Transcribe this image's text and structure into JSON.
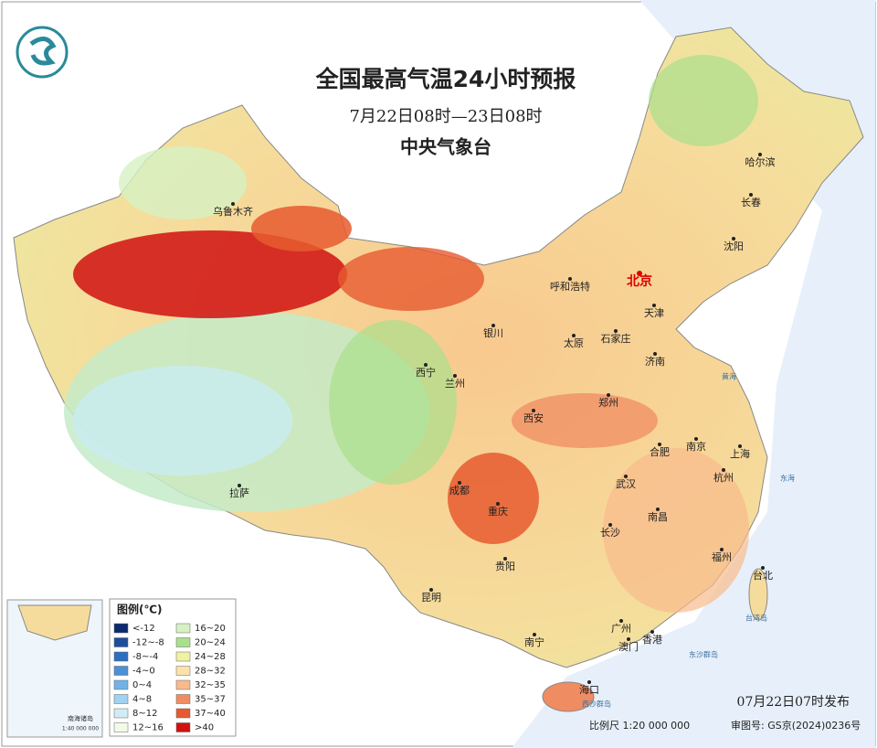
{
  "header": {
    "title": "全国最高气温24小时预报",
    "subtitle": "7月22日08时—23日08时",
    "issuer": "中央气象台"
  },
  "cities": [
    "乌鲁木齐",
    "哈尔滨",
    "长春",
    "沈阳",
    "呼和浩特",
    "北京",
    "天津",
    "银川",
    "太原",
    "石家庄",
    "济南",
    "西宁",
    "兰州",
    "西安",
    "郑州",
    "合肥",
    "南京",
    "上海",
    "杭州",
    "武汉",
    "成都",
    "重庆",
    "拉萨",
    "长沙",
    "南昌",
    "福州",
    "台北",
    "贵阳",
    "昆明",
    "南宁",
    "广州",
    "香港",
    "澳门",
    "海口"
  ],
  "seas": [
    "黄海",
    "东海",
    "台湾岛",
    "东沙群岛",
    "西沙群岛"
  ],
  "legend": {
    "title": "图例(℃)",
    "items": [
      {
        "label": "<-12",
        "color": "#0b2a6f"
      },
      {
        "label": "-12~-8",
        "color": "#1d4e9e"
      },
      {
        "label": "-8~-4",
        "color": "#2f6fc0"
      },
      {
        "label": "-4~0",
        "color": "#4c90d6"
      },
      {
        "label": "0~4",
        "color": "#72b2e8"
      },
      {
        "label": "4~8",
        "color": "#a2d2f1"
      },
      {
        "label": "8~12",
        "color": "#d2ecf6"
      },
      {
        "label": "12~16",
        "color": "#f3fbe8"
      },
      {
        "label": "16~20",
        "color": "#d6f1c3"
      },
      {
        "label": "20~24",
        "color": "#a9e08c"
      },
      {
        "label": "24~28",
        "color": "#eef2a2"
      },
      {
        "label": "28~32",
        "color": "#fce2aa"
      },
      {
        "label": "32~35",
        "color": "#f8ba8c"
      },
      {
        "label": "35~37",
        "color": "#f08c62"
      },
      {
        "label": "37~40",
        "color": "#e65a2f"
      },
      {
        "label": ">40",
        "color": "#d01111"
      }
    ]
  },
  "inset": {
    "title": "南海诸岛",
    "scale": "1:40 000 000"
  },
  "footer": {
    "issued": "07月22日07时发布",
    "scale": "比例尺  1:20 000 000",
    "approval": "审图号: GS京(2024)0236号"
  }
}
